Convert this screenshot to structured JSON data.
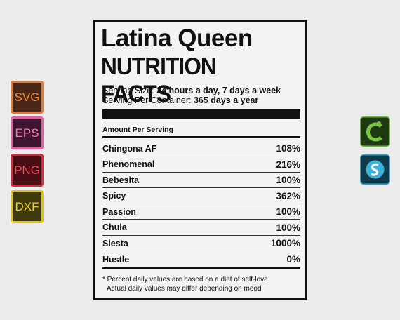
{
  "badges": [
    "SVG",
    "EPS",
    "PNG",
    "DXF"
  ],
  "label": {
    "title": "Latina Queen",
    "subtitle": "NUTRITION FACTS",
    "serving_size": {
      "label": "Serving Size:",
      "value": "24 hours a day, 7 days a week"
    },
    "servings_per_container": {
      "label": "Serving Per Container:",
      "value": "365 days a year"
    },
    "amount_header": "Amount Per Serving",
    "rows": [
      [
        "Chingona AF",
        "108%"
      ],
      [
        "Phenomenal",
        "216%"
      ],
      [
        "Bebesita",
        "100%"
      ],
      [
        "Spicy",
        "362%"
      ],
      [
        "Passion",
        "100%"
      ],
      [
        "Chula",
        "100%"
      ],
      [
        "Siesta",
        "1000%"
      ],
      [
        "Hustle",
        "0%"
      ]
    ],
    "footnotes": [
      "* Percent daily values are based on a diet of self-love",
      "Actual daily values may differ depending on mood"
    ]
  }
}
